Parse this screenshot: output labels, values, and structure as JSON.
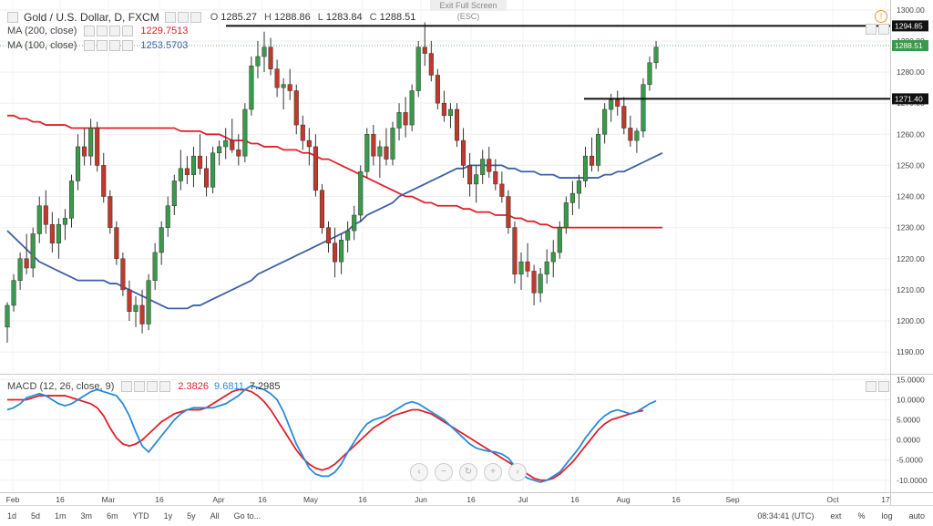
{
  "header": {
    "symbol": "Gold / U.S. Dollar, D, FXCM",
    "ohlc": [
      {
        "label": "O",
        "value": "1285.27"
      },
      {
        "label": "H",
        "value": "1288.86"
      },
      {
        "label": "L",
        "value": "1283.84"
      },
      {
        "label": "C",
        "value": "1288.51"
      }
    ],
    "ma200": {
      "label": "MA (200, close)",
      "value": "1229.7513",
      "color": "#e0202a"
    },
    "ma100": {
      "label": "MA (100, close)",
      "value": "1253.5703",
      "color": "#3d5fa8"
    },
    "exit_fullscreen": "Exit Full Screen (ESC)",
    "macd_label": "MACD (12, 26, close, 9)",
    "macd_values": [
      {
        "value": "2.3826",
        "color": "#e0202a"
      },
      {
        "value": "9.6811",
        "color": "#2a8ad8"
      },
      {
        "value": "7.2985",
        "color": "#333333"
      }
    ]
  },
  "toolbar": {
    "timeframes": [
      "1d",
      "5d",
      "1m",
      "3m",
      "6m",
      "YTD",
      "1y",
      "5y",
      "All",
      "Go to..."
    ],
    "time": "08:34:41 (UTC)",
    "options": [
      "ext",
      "%",
      "log",
      "auto"
    ]
  },
  "chart_data": {
    "type": "candlestick",
    "x_labels": [
      "Feb",
      "16",
      "Mar",
      "16",
      "Apr",
      "16",
      "May",
      "16",
      "Jun",
      "16",
      "Jul",
      "16",
      "Aug",
      "16",
      "Sep",
      "Oct",
      "17"
    ],
    "price_axis": [
      "1300.00",
      "1290.00",
      "1280.00",
      "1270.00",
      "1260.00",
      "1250.00",
      "1240.00",
      "1230.00",
      "1220.00",
      "1210.00",
      "1200.00",
      "1190.00"
    ],
    "price_range": [
      1183,
      1302
    ],
    "macd_axis": [
      "15.0000",
      "10.0000",
      "5.0000",
      "0.0000",
      "-5.0000",
      "-10.0000"
    ],
    "macd_range": [
      -13,
      16
    ],
    "up_color": "#3a9a4a",
    "down_color": "#c0392b",
    "levels": [
      {
        "price": 1294.85,
        "label": "1294.85"
      },
      {
        "price": 1271.4,
        "label": "1271.40"
      }
    ],
    "last_price": {
      "price": 1288.51,
      "label": "1288.51"
    },
    "candles": [
      [
        1198,
        1206,
        1193,
        1205
      ],
      [
        1205,
        1215,
        1203,
        1213
      ],
      [
        1213,
        1222,
        1210,
        1220
      ],
      [
        1220,
        1228,
        1215,
        1217
      ],
      [
        1217,
        1230,
        1214,
        1228
      ],
      [
        1228,
        1240,
        1225,
        1237
      ],
      [
        1237,
        1242,
        1228,
        1231
      ],
      [
        1231,
        1235,
        1222,
        1225
      ],
      [
        1225,
        1233,
        1220,
        1231
      ],
      [
        1231,
        1236,
        1226,
        1233
      ],
      [
        1233,
        1247,
        1230,
        1245
      ],
      [
        1245,
        1260,
        1242,
        1256
      ],
      [
        1256,
        1262,
        1250,
        1253
      ],
      [
        1253,
        1265,
        1250,
        1262
      ],
      [
        1262,
        1264,
        1248,
        1250
      ],
      [
        1250,
        1254,
        1238,
        1240
      ],
      [
        1240,
        1242,
        1228,
        1230
      ],
      [
        1230,
        1232,
        1218,
        1220
      ],
      [
        1220,
        1222,
        1208,
        1210
      ],
      [
        1210,
        1213,
        1200,
        1203
      ],
      [
        1203,
        1208,
        1198,
        1205
      ],
      [
        1205,
        1210,
        1196,
        1199
      ],
      [
        1199,
        1215,
        1197,
        1213
      ],
      [
        1213,
        1225,
        1210,
        1222
      ],
      [
        1222,
        1232,
        1218,
        1230
      ],
      [
        1230,
        1240,
        1227,
        1237
      ],
      [
        1237,
        1247,
        1234,
        1245
      ],
      [
        1245,
        1255,
        1242,
        1249
      ],
      [
        1249,
        1253,
        1244,
        1247
      ],
      [
        1247,
        1256,
        1243,
        1253
      ],
      [
        1253,
        1260,
        1247,
        1249
      ],
      [
        1249,
        1253,
        1240,
        1243
      ],
      [
        1243,
        1256,
        1241,
        1254
      ],
      [
        1254,
        1258,
        1250,
        1256
      ],
      [
        1256,
        1262,
        1252,
        1258
      ],
      [
        1258,
        1265,
        1254,
        1255
      ],
      [
        1255,
        1260,
        1250,
        1253
      ],
      [
        1253,
        1270,
        1251,
        1268
      ],
      [
        1268,
        1285,
        1266,
        1282
      ],
      [
        1282,
        1290,
        1278,
        1285
      ],
      [
        1285,
        1293,
        1280,
        1288
      ],
      [
        1288,
        1291,
        1279,
        1281
      ],
      [
        1281,
        1284,
        1272,
        1275
      ],
      [
        1275,
        1278,
        1268,
        1276
      ],
      [
        1276,
        1281,
        1271,
        1274
      ],
      [
        1274,
        1276,
        1260,
        1263
      ],
      [
        1263,
        1266,
        1255,
        1258
      ],
      [
        1258,
        1262,
        1250,
        1256
      ],
      [
        1256,
        1260,
        1240,
        1242
      ],
      [
        1242,
        1244,
        1228,
        1230
      ],
      [
        1230,
        1232,
        1222,
        1225
      ],
      [
        1225,
        1230,
        1214,
        1219
      ],
      [
        1219,
        1228,
        1215,
        1226
      ],
      [
        1226,
        1232,
        1222,
        1229
      ],
      [
        1229,
        1237,
        1226,
        1234
      ],
      [
        1234,
        1250,
        1232,
        1248
      ],
      [
        1248,
        1262,
        1246,
        1260
      ],
      [
        1260,
        1263,
        1250,
        1253
      ],
      [
        1253,
        1258,
        1246,
        1256
      ],
      [
        1256,
        1262,
        1250,
        1252
      ],
      [
        1252,
        1264,
        1250,
        1262
      ],
      [
        1262,
        1270,
        1258,
        1267
      ],
      [
        1267,
        1272,
        1259,
        1263
      ],
      [
        1263,
        1276,
        1261,
        1274
      ],
      [
        1274,
        1290,
        1272,
        1288
      ],
      [
        1288,
        1296,
        1282,
        1286
      ],
      [
        1286,
        1290,
        1277,
        1279
      ],
      [
        1279,
        1281,
        1268,
        1270
      ],
      [
        1270,
        1274,
        1264,
        1266
      ],
      [
        1266,
        1270,
        1262,
        1268
      ],
      [
        1268,
        1270,
        1256,
        1258
      ],
      [
        1258,
        1262,
        1246,
        1250
      ],
      [
        1250,
        1254,
        1240,
        1244
      ],
      [
        1244,
        1250,
        1238,
        1247
      ],
      [
        1247,
        1255,
        1244,
        1252
      ],
      [
        1252,
        1256,
        1246,
        1248
      ],
      [
        1248,
        1252,
        1242,
        1244
      ],
      [
        1244,
        1248,
        1238,
        1240
      ],
      [
        1240,
        1242,
        1228,
        1230
      ],
      [
        1230,
        1232,
        1212,
        1215
      ],
      [
        1215,
        1222,
        1210,
        1219
      ],
      [
        1219,
        1225,
        1214,
        1216
      ],
      [
        1216,
        1218,
        1205,
        1209
      ],
      [
        1209,
        1217,
        1206,
        1215
      ],
      [
        1215,
        1223,
        1212,
        1219
      ],
      [
        1219,
        1226,
        1214,
        1222
      ],
      [
        1222,
        1232,
        1220,
        1230
      ],
      [
        1230,
        1240,
        1228,
        1238
      ],
      [
        1238,
        1245,
        1234,
        1241
      ],
      [
        1241,
        1247,
        1236,
        1245
      ],
      [
        1245,
        1256,
        1243,
        1253
      ],
      [
        1253,
        1259,
        1248,
        1250
      ],
      [
        1250,
        1262,
        1248,
        1260
      ],
      [
        1260,
        1270,
        1257,
        1268
      ],
      [
        1268,
        1273,
        1264,
        1271
      ],
      [
        1271,
        1274,
        1266,
        1269
      ],
      [
        1269,
        1272,
        1260,
        1262
      ],
      [
        1262,
        1266,
        1256,
        1258
      ],
      [
        1258,
        1262,
        1254,
        1261
      ],
      [
        1261,
        1278,
        1259,
        1276
      ],
      [
        1276,
        1285,
        1274,
        1283
      ],
      [
        1283,
        1290,
        1281,
        1288
      ]
    ],
    "series": [
      {
        "name": "MA (200, close)",
        "color": "#e0202a",
        "values": [
          1266,
          1266,
          1265,
          1265,
          1264,
          1264,
          1263,
          1263,
          1263,
          1263,
          1262,
          1262,
          1262,
          1262,
          1262,
          1262,
          1262,
          1262,
          1262,
          1262,
          1262,
          1262,
          1262,
          1262,
          1262,
          1262,
          1262,
          1261,
          1261,
          1261,
          1261,
          1260,
          1260,
          1260,
          1259,
          1258,
          1258,
          1258,
          1257,
          1257,
          1256,
          1256,
          1256,
          1255,
          1255,
          1255,
          1254,
          1254,
          1253,
          1252,
          1252,
          1251,
          1250,
          1249,
          1248,
          1247,
          1246,
          1245,
          1244,
          1243,
          1242,
          1241,
          1240,
          1240,
          1239,
          1238,
          1238,
          1237,
          1237,
          1237,
          1237,
          1236,
          1236,
          1235,
          1235,
          1235,
          1234,
          1234,
          1234,
          1233,
          1233,
          1232,
          1232,
          1231,
          1231,
          1230,
          1230,
          1230,
          1230,
          1230,
          1230,
          1230,
          1230,
          1230,
          1230,
          1230,
          1230,
          1230,
          1230,
          1230,
          1230,
          1230,
          1230
        ]
      },
      {
        "name": "MA (100, close)",
        "color": "#3d5fa8",
        "values": [
          1229,
          1227,
          1225,
          1223,
          1221,
          1219,
          1218,
          1217,
          1216,
          1215,
          1214,
          1213,
          1213,
          1213,
          1213,
          1213,
          1212,
          1212,
          1211,
          1210,
          1209,
          1208,
          1207,
          1206,
          1205,
          1204,
          1204,
          1204,
          1204,
          1205,
          1205,
          1206,
          1207,
          1208,
          1209,
          1210,
          1211,
          1212,
          1213,
          1215,
          1216,
          1217,
          1218,
          1219,
          1220,
          1221,
          1222,
          1223,
          1224,
          1225,
          1226,
          1227,
          1228,
          1229,
          1231,
          1232,
          1234,
          1235,
          1236,
          1237,
          1238,
          1240,
          1241,
          1242,
          1243,
          1244,
          1245,
          1246,
          1247,
          1248,
          1249,
          1249,
          1250,
          1250,
          1250,
          1250,
          1250,
          1250,
          1249,
          1249,
          1248,
          1248,
          1248,
          1247,
          1247,
          1247,
          1246,
          1246,
          1246,
          1246,
          1246,
          1246,
          1246,
          1247,
          1247,
          1248,
          1248,
          1249,
          1250,
          1251,
          1252,
          1253,
          1254
        ]
      },
      {
        "name": "MACD",
        "color": "#2a8ad8",
        "values": [
          7.5,
          8.0,
          9.0,
          10.5,
          11.0,
          11.5,
          11.0,
          10.0,
          9.0,
          8.5,
          9.0,
          10.0,
          11.0,
          12.0,
          12.5,
          12.0,
          11.5,
          11.0,
          9.0,
          6.0,
          2.0,
          -1.5,
          -3.0,
          -1.0,
          1.0,
          3.0,
          5.0,
          6.5,
          7.5,
          8.0,
          8.0,
          8.0,
          8.0,
          8.5,
          9.0,
          10.0,
          11.0,
          12.5,
          13.5,
          13.0,
          12.5,
          11.5,
          10.0,
          7.0,
          3.0,
          -1.0,
          -4.0,
          -7.0,
          -8.5,
          -9.0,
          -9.0,
          -8.0,
          -6.0,
          -3.0,
          -0.5,
          2.0,
          4.0,
          5.0,
          5.5,
          6.0,
          7.0,
          8.0,
          9.0,
          9.5,
          9.0,
          8.0,
          7.0,
          6.0,
          5.0,
          3.5,
          2.0,
          0.5,
          -1.0,
          -2.0,
          -2.5,
          -2.8,
          -3.0,
          -3.5,
          -4.5,
          -6.5,
          -8.5,
          -9.5,
          -10.0,
          -10.5,
          -10.0,
          -9.0,
          -8.0,
          -6.0,
          -4.0,
          -2.0,
          0.5,
          2.5,
          4.5,
          6.0,
          7.0,
          7.5,
          7.0,
          6.5,
          7.0,
          8.0,
          9.0,
          9.7
        ]
      },
      {
        "name": "Signal",
        "color": "#e0202a",
        "values": [
          10.0,
          10.0,
          10.0,
          10.0,
          10.5,
          11.0,
          11.0,
          11.0,
          11.0,
          11.0,
          10.5,
          10.0,
          9.5,
          9.0,
          8.0,
          6.0,
          3.0,
          0.5,
          -1.0,
          -1.5,
          -1.0,
          0.0,
          1.5,
          3.0,
          4.5,
          5.5,
          6.5,
          7.0,
          7.5,
          7.5,
          7.5,
          8.0,
          9.0,
          10.0,
          11.0,
          12.0,
          12.5,
          12.5,
          12.0,
          11.0,
          9.5,
          7.5,
          5.0,
          2.5,
          0.0,
          -2.5,
          -4.5,
          -6.0,
          -7.0,
          -7.5,
          -7.0,
          -6.0,
          -4.5,
          -3.0,
          -1.5,
          0.0,
          1.5,
          3.0,
          4.0,
          5.0,
          6.0,
          6.5,
          7.0,
          7.5,
          7.5,
          7.0,
          6.5,
          5.5,
          4.5,
          3.5,
          2.5,
          1.5,
          0.5,
          -0.5,
          -1.5,
          -2.5,
          -3.5,
          -4.5,
          -5.5,
          -6.5,
          -7.5,
          -8.5,
          -9.5,
          -10.0,
          -10.0,
          -9.5,
          -8.5,
          -7.0,
          -5.5,
          -3.5,
          -1.5,
          0.5,
          2.5,
          4.0,
          5.0,
          5.5,
          6.0,
          6.5,
          7.0,
          7.3
        ]
      }
    ]
  }
}
